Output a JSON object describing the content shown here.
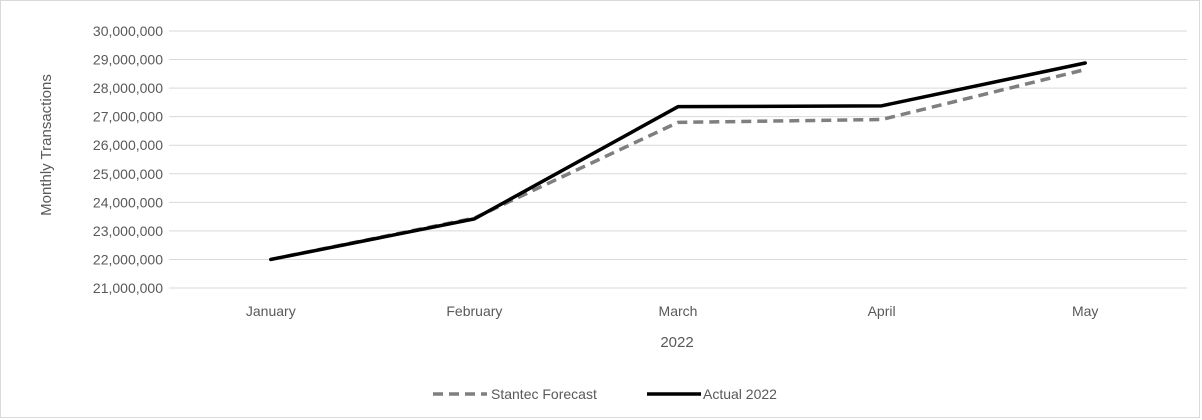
{
  "chart_data": {
    "type": "line",
    "title": "",
    "xlabel": "2022",
    "ylabel": "Monthly Transactions",
    "categories": [
      "January",
      "February",
      "March",
      "April",
      "May"
    ],
    "ylim": [
      21000000,
      30000000
    ],
    "yticks": [
      21000000,
      22000000,
      23000000,
      24000000,
      25000000,
      26000000,
      27000000,
      28000000,
      29000000,
      30000000
    ],
    "ytick_labels": [
      "21,000,000",
      "22,000,000",
      "23,000,000",
      "24,000,000",
      "25,000,000",
      "26,000,000",
      "27,000,000",
      "28,000,000",
      "29,000,000",
      "30,000,000"
    ],
    "grid": true,
    "legend_position": "bottom",
    "series": [
      {
        "name": "Stantec Forecast",
        "values": [
          22000000,
          23450000,
          26800000,
          26900000,
          28650000
        ],
        "color": "#7f7f7f",
        "style": "dashed"
      },
      {
        "name": "Actual 2022",
        "values": [
          22000000,
          23420000,
          27350000,
          27380000,
          28880000
        ],
        "color": "#000000",
        "style": "solid"
      }
    ]
  }
}
